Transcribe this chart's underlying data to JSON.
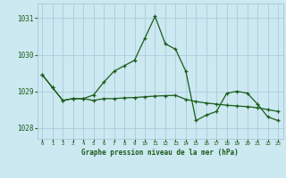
{
  "title": "Graphe pression niveau de la mer (hPa)",
  "bg_color": "#cce8f0",
  "grid_color": "#aaccdd",
  "line_color": "#1a5c1a",
  "xlim": [
    -0.5,
    23.5
  ],
  "ylim": [
    1027.7,
    1031.4
  ],
  "yticks": [
    1028,
    1029,
    1030,
    1031
  ],
  "xticks": [
    0,
    1,
    2,
    3,
    4,
    5,
    6,
    7,
    8,
    9,
    10,
    11,
    12,
    13,
    14,
    15,
    16,
    17,
    18,
    19,
    20,
    21,
    22,
    23
  ],
  "series1_x": [
    0,
    1,
    2,
    3,
    4,
    5,
    6,
    7,
    8,
    9,
    10,
    11,
    12,
    13,
    14,
    15,
    16,
    17,
    18,
    19,
    20,
    21,
    22,
    23
  ],
  "series1_y": [
    1029.45,
    1029.1,
    1028.75,
    1028.8,
    1028.8,
    1028.75,
    1028.8,
    1028.8,
    1028.82,
    1028.83,
    1028.85,
    1028.87,
    1028.88,
    1028.89,
    1028.78,
    1028.72,
    1028.68,
    1028.65,
    1028.62,
    1028.6,
    1028.58,
    1028.55,
    1028.5,
    1028.45
  ],
  "series2_x": [
    0,
    1,
    2,
    3,
    4,
    5,
    6,
    7,
    8,
    9,
    10,
    11,
    12,
    13,
    14,
    15,
    16,
    17,
    18,
    19,
    20,
    21,
    22,
    23
  ],
  "series2_y": [
    1029.45,
    1029.1,
    1028.75,
    1028.8,
    1028.8,
    1028.9,
    1029.25,
    1029.55,
    1029.7,
    1029.85,
    1030.45,
    1031.05,
    1030.3,
    1030.15,
    1029.55,
    1028.2,
    1028.35,
    1028.45,
    1028.95,
    1029.0,
    1028.95,
    1028.65,
    1028.3,
    1028.2
  ]
}
